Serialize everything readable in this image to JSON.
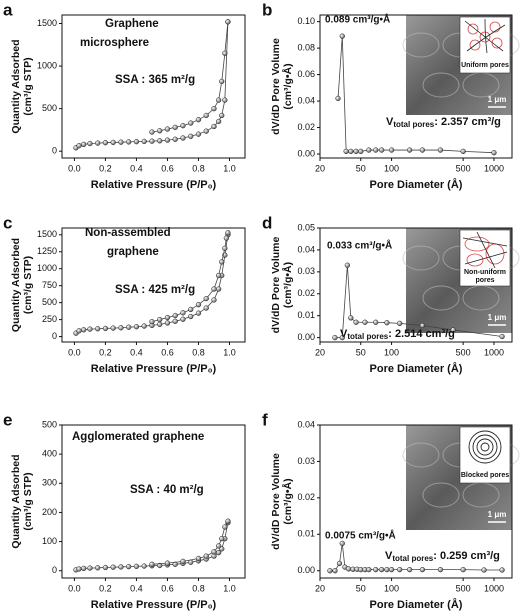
{
  "chart_data": [
    {
      "type": "line",
      "label": "a",
      "xlabel": "Relative Pressure (P/P₀)",
      "ylabel": [
        "Quantity Adsorbed",
        "(cm³/g STP)"
      ],
      "annotations": [
        "Graphene",
        "microsphere",
        "SSA : 365 m²/g"
      ],
      "xlim": [
        -0.08,
        1.1
      ],
      "ylim": [
        -80,
        1600
      ],
      "xticks": [
        {
          "value": 0,
          "label": "0.0"
        },
        0.2,
        0.4,
        0.6,
        0.8,
        {
          "value": 1,
          "label": "1.0"
        }
      ],
      "yticks": [
        0,
        500,
        1000,
        1500
      ],
      "series": [
        {
          "color": "#444444",
          "x": [
            0.01,
            0.03,
            0.06,
            0.1,
            0.15,
            0.2,
            0.25,
            0.3,
            0.35,
            0.4,
            0.45,
            0.5,
            0.55,
            0.6,
            0.65,
            0.7,
            0.75,
            0.8,
            0.85,
            0.9,
            0.93,
            0.95,
            0.97,
            0.99
          ],
          "values": [
            40,
            65,
            80,
            90,
            95,
            100,
            103,
            106,
            109,
            112,
            115,
            118,
            122,
            130,
            140,
            155,
            175,
            200,
            235,
            290,
            350,
            420,
            600,
            1520
          ]
        },
        {
          "color": "#444444",
          "x": [
            0.99,
            0.97,
            0.95,
            0.93,
            0.9,
            0.85,
            0.8,
            0.75,
            0.7,
            0.65,
            0.6,
            0.55,
            0.5
          ],
          "values": [
            1520,
            1150,
            820,
            600,
            500,
            420,
            370,
            330,
            300,
            280,
            260,
            240,
            225
          ]
        }
      ]
    },
    {
      "type": "line",
      "label": "b",
      "xscale": "log",
      "xlabel": "Pore Diameter (Å)",
      "ylabel": [
        "dV/dD Pore Volume",
        "(cm³/g•Å)"
      ],
      "annotations": [
        "0.089 cm³/g•Å"
      ],
      "vtotal": [
        "V",
        "total pores",
        ": 2.357 cm³/g"
      ],
      "inset": {
        "text": [
          "Uniform pores"
        ],
        "scale": "1 μm"
      },
      "xlim": [
        20,
        1500
      ],
      "ylim": [
        -0.003,
        0.105
      ],
      "xticks": [
        20,
        50,
        100,
        500,
        1000
      ],
      "yticks": [
        {
          "value": 0,
          "label": "0.00"
        },
        0.02,
        0.04,
        0.06,
        0.08,
        {
          "value": 0.1,
          "label": "0.10"
        }
      ],
      "series": [
        {
          "color": "#444444",
          "x": [
            30,
            33,
            36,
            40,
            45,
            50,
            60,
            70,
            80,
            100,
            150,
            200,
            300,
            500,
            1000
          ],
          "values": [
            0.042,
            0.089,
            0.002,
            0.002,
            0.002,
            0.002,
            0.003,
            0.003,
            0.003,
            0.003,
            0.003,
            0.003,
            0.003,
            0.002,
            0.001
          ]
        }
      ]
    },
    {
      "type": "line",
      "label": "c",
      "xlabel": "Relative Pressure (P/P₀)",
      "ylabel": [
        "Quantity Adsorbed",
        "(cm³/g STP)"
      ],
      "annotations": [
        "Non-assembled",
        "graphene",
        "SSA : 425 m²/g"
      ],
      "xlim": [
        -0.08,
        1.1
      ],
      "ylim": [
        -80,
        1600
      ],
      "xticks": [
        {
          "value": 0,
          "label": "0.0"
        },
        0.2,
        0.4,
        0.6,
        0.8,
        {
          "value": 1,
          "label": "1.0"
        }
      ],
      "yticks": [
        0,
        250,
        500,
        750,
        1000,
        1250,
        1500
      ],
      "series": [
        {
          "color": "#444444",
          "x": [
            0.01,
            0.03,
            0.06,
            0.1,
            0.15,
            0.2,
            0.25,
            0.3,
            0.35,
            0.4,
            0.45,
            0.5,
            0.55,
            0.6,
            0.65,
            0.7,
            0.75,
            0.8,
            0.85,
            0.9,
            0.93,
            0.95,
            0.97,
            0.99
          ],
          "values": [
            50,
            85,
            100,
            110,
            115,
            120,
            125,
            130,
            138,
            145,
            155,
            165,
            180,
            200,
            225,
            255,
            295,
            345,
            420,
            540,
            700,
            900,
            1200,
            1500
          ]
        },
        {
          "color": "#444444",
          "x": [
            0.99,
            0.98,
            0.97,
            0.95,
            0.93,
            0.9,
            0.85,
            0.8,
            0.75,
            0.7,
            0.65,
            0.6,
            0.55,
            0.5
          ],
          "values": [
            1530,
            1450,
            1300,
            1100,
            900,
            700,
            560,
            470,
            400,
            350,
            310,
            280,
            250,
            220
          ]
        }
      ]
    },
    {
      "type": "line",
      "label": "d",
      "xscale": "log",
      "xlabel": "Pore Diameter (Å)",
      "ylabel": [
        "dV/dD Pore Volume",
        "(cm³/g•Å)"
      ],
      "annotations": [
        "0.033 cm³/g•Å"
      ],
      "vtotal": [
        "V",
        "total pores",
        ": 2.514 cm³/g"
      ],
      "inset": {
        "text": [
          "Non-uniform",
          "pores"
        ],
        "scale": "1 μm"
      },
      "xlim": [
        20,
        1500
      ],
      "ylim": [
        -0.002,
        0.05
      ],
      "xticks": [
        20,
        50,
        100,
        500,
        1000
      ],
      "yticks": [
        {
          "value": 0,
          "label": "0.00"
        },
        0.01,
        0.02,
        0.03,
        0.04,
        0.05
      ],
      "series": [
        {
          "color": "#444444",
          "x": [
            28,
            33,
            37,
            40,
            45,
            55,
            70,
            90,
            120,
            200,
            400,
            1200
          ],
          "values": [
            0,
            0,
            0.033,
            0.009,
            0.007,
            0.007,
            0.007,
            0.0068,
            0.0065,
            0.0055,
            0.0035,
            0.0005
          ]
        }
      ]
    },
    {
      "type": "line",
      "label": "e",
      "xlabel": "Relative Pressure (P/P₀)",
      "ylabel": [
        "Quantity Adsorbed",
        "(cm³/g STP)"
      ],
      "annotations": [
        "Agglomerated graphene",
        "SSA : 40 m²/g"
      ],
      "xlim": [
        -0.08,
        1.1
      ],
      "ylim": [
        -25,
        500
      ],
      "xticks": [
        {
          "value": 0,
          "label": "0.0"
        },
        0.2,
        0.4,
        0.6,
        0.8,
        {
          "value": 1,
          "label": "1.0"
        }
      ],
      "yticks": [
        0,
        100,
        200,
        300,
        400,
        500
      ],
      "series": [
        {
          "color": "#444444",
          "x": [
            0.01,
            0.03,
            0.06,
            0.1,
            0.15,
            0.2,
            0.25,
            0.3,
            0.35,
            0.4,
            0.45,
            0.5,
            0.55,
            0.6,
            0.65,
            0.7,
            0.75,
            0.8,
            0.85,
            0.9,
            0.93,
            0.95,
            0.97,
            0.99
          ],
          "values": [
            3,
            6,
            8,
            9,
            10,
            11,
            12,
            13,
            14,
            15,
            16,
            17,
            18,
            20,
            22,
            25,
            29,
            34,
            40,
            50,
            62,
            75,
            110,
            165
          ]
        },
        {
          "color": "#444444",
          "x": [
            0.99,
            0.97,
            0.95,
            0.93,
            0.9,
            0.85,
            0.8,
            0.7,
            0.6,
            0.5
          ],
          "values": [
            170,
            150,
            110,
            85,
            65,
            50,
            42,
            32,
            26,
            22
          ]
        }
      ]
    },
    {
      "type": "line",
      "label": "f",
      "xscale": "log",
      "xlabel": "Pore Diameter (Å)",
      "ylabel": [
        "dV/dD Pore Volume",
        "(cm³/g•Å)"
      ],
      "annotations": [
        "0.0075 cm³/g•Å"
      ],
      "vtotal": [
        "V",
        "total pores",
        ": 0.259 cm³/g"
      ],
      "inset": {
        "text": [
          "Blocked pores"
        ],
        "scale": "1 μm"
      },
      "xlim": [
        20,
        1500
      ],
      "ylim": [
        -0.002,
        0.04
      ],
      "xticks": [
        20,
        50,
        100,
        500,
        1000
      ],
      "yticks": [
        {
          "value": 0,
          "label": "0.00"
        },
        0.01,
        0.02,
        0.03,
        0.04
      ],
      "series": [
        {
          "color": "#444444",
          "x": [
            25,
            28,
            31,
            33,
            35,
            38,
            42,
            46,
            50,
            55,
            60,
            70,
            80,
            90,
            100,
            120,
            150,
            200,
            300,
            500,
            800,
            1200
          ],
          "values": [
            0,
            0,
            0.002,
            0.0075,
            0.001,
            0.0005,
            0.0004,
            0.0004,
            0.0003,
            0.0003,
            0.0003,
            0.0003,
            0.0003,
            0.0003,
            0.0003,
            0.0003,
            0.0003,
            0.0003,
            0.0003,
            0.0003,
            0.0002,
            0.0002
          ]
        }
      ]
    }
  ]
}
